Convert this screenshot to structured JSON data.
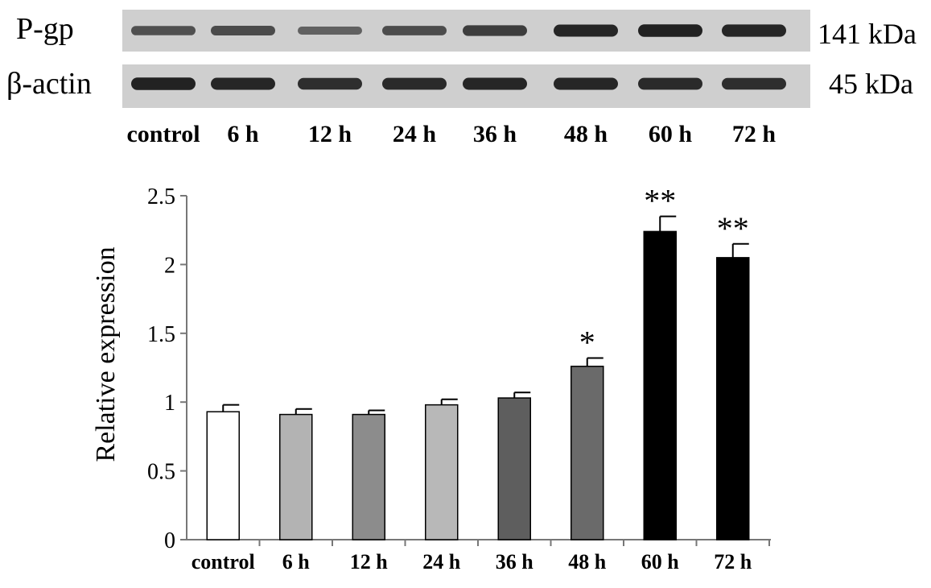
{
  "blot": {
    "rows": [
      {
        "protein": "P-gp",
        "size": "141 kDa",
        "intensity": [
          0.55,
          0.6,
          0.4,
          0.58,
          0.72,
          0.9,
          0.95,
          0.92
        ]
      },
      {
        "protein": "β-actin",
        "size": "45 kDa",
        "intensity": [
          0.95,
          0.9,
          0.85,
          0.88,
          0.9,
          0.9,
          0.88,
          0.85
        ]
      }
    ],
    "lanes": [
      "control",
      "6 h",
      "12 h",
      "24 h",
      "36 h",
      "48 h",
      "60 h",
      "72 h"
    ]
  },
  "chart_data": {
    "type": "bar",
    "categories": [
      "control",
      "6 h",
      "12 h",
      "24 h",
      "36 h",
      "48 h",
      "60 h",
      "72 h"
    ],
    "values": [
      0.93,
      0.91,
      0.91,
      0.98,
      1.03,
      1.26,
      2.24,
      2.05
    ],
    "errors": [
      0.05,
      0.04,
      0.03,
      0.04,
      0.04,
      0.06,
      0.11,
      0.1
    ],
    "significance": [
      "",
      "",
      "",
      "",
      "",
      "*",
      "**",
      "**"
    ],
    "bar_colors": [
      "#ffffff",
      "#b3b3b3",
      "#8c8c8c",
      "#b8b8b8",
      "#5e5e5e",
      "#6a6a6a",
      "#000000",
      "#000000"
    ],
    "ylabel": "Relative expression",
    "xlabel": "",
    "ylim": [
      0,
      2.5
    ],
    "yticks": [
      "0",
      "0.5",
      "1",
      "1.5",
      "2",
      "2.5"
    ],
    "grid": false
  }
}
